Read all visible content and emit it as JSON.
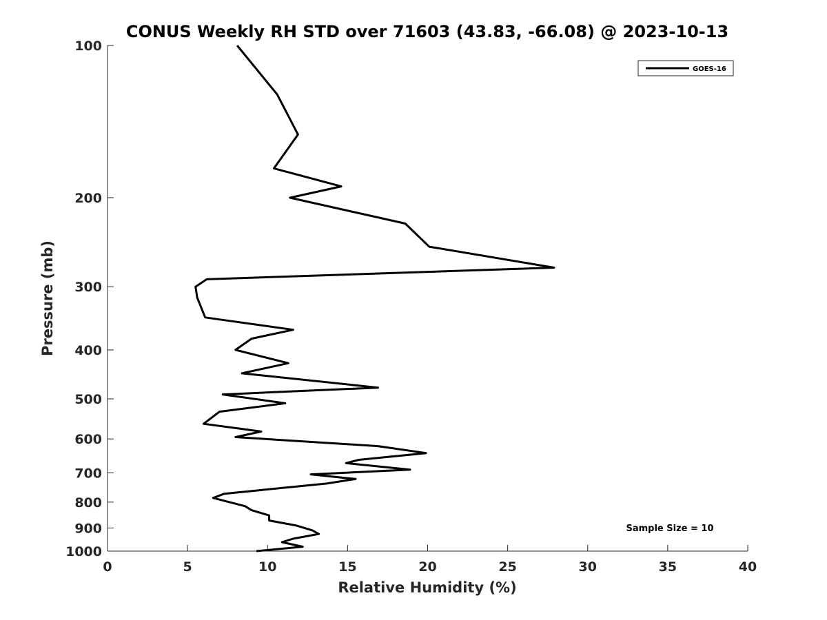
{
  "chart_data": {
    "type": "line",
    "title": "CONUS Weekly RH STD over 71603 (43.83, -66.08) @ 2023-10-13",
    "xlabel": "Relative Humidity (%)",
    "ylabel": "Pressure (mb)",
    "xlim": [
      0,
      40
    ],
    "ylim": [
      100,
      1000
    ],
    "y_scale": "log",
    "y_reversed": true,
    "x_ticks": [
      0,
      5,
      10,
      15,
      20,
      25,
      30,
      35,
      40
    ],
    "x_tick_labels": [
      "0",
      "5",
      "10",
      "15",
      "20",
      "25",
      "30",
      "35",
      "40"
    ],
    "y_ticks": [
      100,
      200,
      300,
      400,
      500,
      600,
      700,
      800,
      900,
      1000
    ],
    "y_tick_labels": [
      "100",
      "200",
      "300",
      "400",
      "500",
      "600",
      "700",
      "800",
      "900",
      "1000"
    ],
    "grid": false,
    "legend_position": "top-right",
    "series": [
      {
        "name": "GOES-16",
        "color": "#000000",
        "points": [
          [
            8.1,
            100
          ],
          [
            10.6,
            125
          ],
          [
            11.9,
            150
          ],
          [
            10.4,
            175
          ],
          [
            14.6,
            190
          ],
          [
            11.4,
            200
          ],
          [
            18.6,
            225
          ],
          [
            20.1,
            250
          ],
          [
            27.9,
            275
          ],
          [
            6.2,
            290
          ],
          [
            5.5,
            300
          ],
          [
            5.6,
            315
          ],
          [
            6.1,
            345
          ],
          [
            11.6,
            365
          ],
          [
            9.0,
            380
          ],
          [
            8.0,
            400
          ],
          [
            11.3,
            425
          ],
          [
            8.4,
            445
          ],
          [
            16.9,
            475
          ],
          [
            7.2,
            490
          ],
          [
            11.1,
            510
          ],
          [
            7.0,
            530
          ],
          [
            6.0,
            560
          ],
          [
            9.6,
            580
          ],
          [
            8.0,
            595
          ],
          [
            16.9,
            620
          ],
          [
            19.9,
            640
          ],
          [
            15.7,
            660
          ],
          [
            14.9,
            670
          ],
          [
            18.9,
            690
          ],
          [
            12.7,
            705
          ],
          [
            15.5,
            720
          ],
          [
            13.7,
            735
          ],
          [
            7.3,
            770
          ],
          [
            6.6,
            785
          ],
          [
            8.6,
            815
          ],
          [
            9.0,
            830
          ],
          [
            10.1,
            850
          ],
          [
            10.1,
            870
          ],
          [
            11.8,
            890
          ],
          [
            12.8,
            910
          ],
          [
            13.2,
            925
          ],
          [
            11.6,
            945
          ],
          [
            10.9,
            960
          ],
          [
            12.2,
            980
          ],
          [
            9.3,
            1000
          ]
        ]
      }
    ],
    "annotation": "Sample Size = 10"
  }
}
